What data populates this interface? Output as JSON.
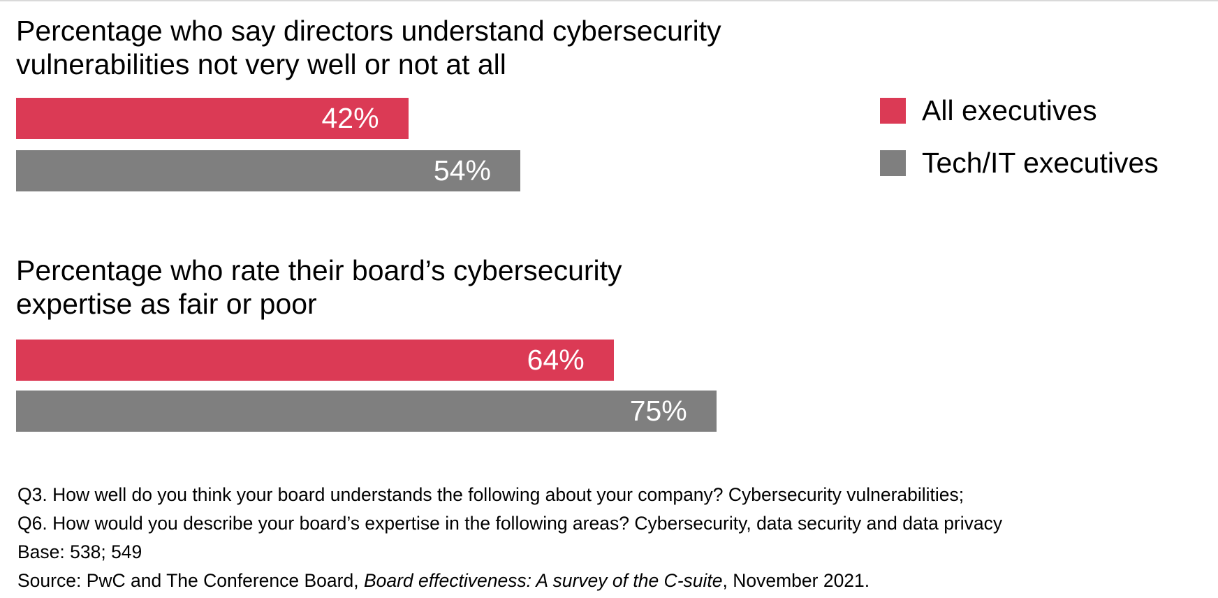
{
  "colors": {
    "all_executives": "#DB3A55",
    "tech_it_executives": "#7F7F7F"
  },
  "chart_data": [
    {
      "type": "bar",
      "orientation": "horizontal",
      "title": [
        "Percentage who say directors understand cybersecurity",
        "vulnerabilities not very well or not at all"
      ],
      "series": [
        {
          "name": "All executives",
          "values": [
            42
          ],
          "labels": [
            "42%"
          ]
        },
        {
          "name": "Tech/IT executives",
          "values": [
            54
          ],
          "labels": [
            "54%"
          ]
        }
      ],
      "xlim": [
        0,
        100
      ]
    },
    {
      "type": "bar",
      "orientation": "horizontal",
      "title": [
        "Percentage who rate their board’s cybersecurity",
        "expertise as fair or poor"
      ],
      "series": [
        {
          "name": "All executives",
          "values": [
            64
          ],
          "labels": [
            "64%"
          ]
        },
        {
          "name": "Tech/IT executives",
          "values": [
            75
          ],
          "labels": [
            "75%"
          ]
        }
      ],
      "xlim": [
        0,
        100
      ]
    }
  ],
  "legend": {
    "placement": "top-right",
    "items": [
      {
        "label": "All executives"
      },
      {
        "label": "Tech/IT executives"
      }
    ]
  },
  "footer": {
    "q3": "Q3. How well do you think your board understands the following about your company? Cybersecurity vulnerabilities;",
    "q6": "Q6. How would you describe your board’s expertise in the following areas? Cybersecurity, data security and data privacy",
    "base": "Base: 538; 549",
    "source_prefix": "Source: PwC and The Conference Board, ",
    "source_title": "Board effectiveness: A survey of the C-suite",
    "source_suffix": ", November 2021."
  }
}
